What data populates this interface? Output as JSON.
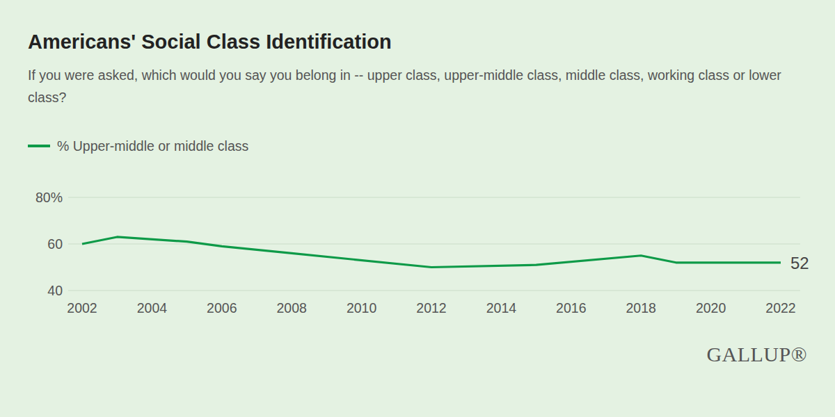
{
  "chart_data": {
    "type": "line",
    "title": "Americans' Social Class Identification",
    "subtitle": "If you were asked, which would you say you belong in -- upper class, upper-middle class, middle class, working class or lower class?",
    "x": [
      2002,
      2003,
      2005,
      2006,
      2008,
      2012,
      2015,
      2018,
      2019,
      2022
    ],
    "series": [
      {
        "name": "% Upper-middle or middle class",
        "color": "#0e9a48",
        "values": [
          60,
          63,
          61,
          59,
          56,
          50,
          51,
          55,
          52,
          52
        ]
      }
    ],
    "xlim": [
      2002,
      2022
    ],
    "xticks": [
      2002,
      2004,
      2006,
      2008,
      2010,
      2012,
      2014,
      2016,
      2018,
      2020,
      2022
    ],
    "ylim": [
      40,
      80
    ],
    "yticks": [
      40,
      60,
      {
        "value": 80,
        "label": "80%"
      }
    ],
    "grid": true,
    "legend": "top-left",
    "source": "GALLUP®"
  }
}
